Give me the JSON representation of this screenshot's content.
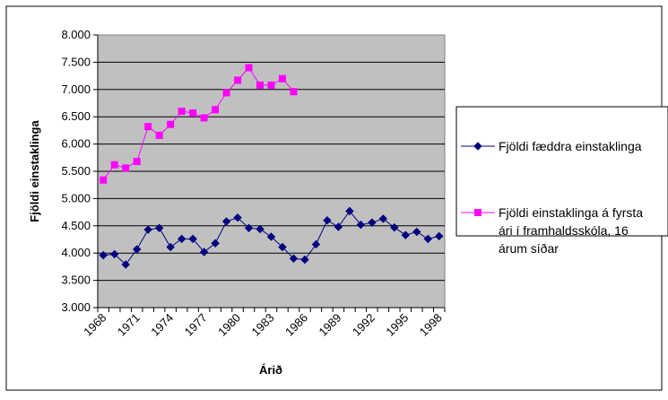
{
  "chart_data": {
    "type": "line",
    "title": "",
    "xlabel": "Árið",
    "ylabel": "Fjöldi einstaklinga",
    "ylim": [
      3000,
      8000
    ],
    "yticks": [
      "3.000",
      "3.500",
      "4.000",
      "4.500",
      "5.000",
      "5.500",
      "6.000",
      "6.500",
      "7.000",
      "7.500",
      "8.000"
    ],
    "xticks": [
      "1968",
      "1971",
      "1974",
      "1977",
      "1980",
      "1983",
      "1986",
      "1989",
      "1992",
      "1995",
      "1998"
    ],
    "x": [
      1968,
      1969,
      1970,
      1971,
      1972,
      1973,
      1974,
      1975,
      1976,
      1977,
      1978,
      1979,
      1980,
      1981,
      1982,
      1983,
      1984,
      1985,
      1986,
      1987,
      1988,
      1989,
      1990,
      1991,
      1992,
      1993,
      1994,
      1995,
      1996,
      1997,
      1998
    ],
    "grid": true,
    "legend_position": "right",
    "series": [
      {
        "name": "Fjöldi fæddra einstaklinga",
        "color": "#000080",
        "marker": "diamond",
        "values": [
          3960,
          3980,
          3790,
          4070,
          4430,
          4460,
          4110,
          4260,
          4260,
          4020,
          4180,
          4580,
          4650,
          4460,
          4440,
          4300,
          4110,
          3900,
          3880,
          4160,
          4600,
          4480,
          4770,
          4520,
          4560,
          4630,
          4470,
          4330,
          4390,
          4260,
          4310
        ]
      },
      {
        "name": "Fjöldi einstaklinga á fyrsta ári í framhaldsskóla, 16 árum síðar",
        "legend_lines": [
          "Fjöldi einstaklinga á fyrsta",
          "ári í framhaldsskóla, 16",
          "árum síðar"
        ],
        "color": "#FF00FF",
        "marker": "square",
        "values": [
          5340,
          5620,
          5560,
          5680,
          6320,
          6160,
          6360,
          6600,
          6570,
          6480,
          6630,
          6940,
          7170,
          7400,
          7080,
          7080,
          7200,
          6960,
          null,
          null,
          null,
          null,
          null,
          null,
          null,
          null,
          null,
          null,
          null,
          null,
          null
        ]
      }
    ]
  }
}
